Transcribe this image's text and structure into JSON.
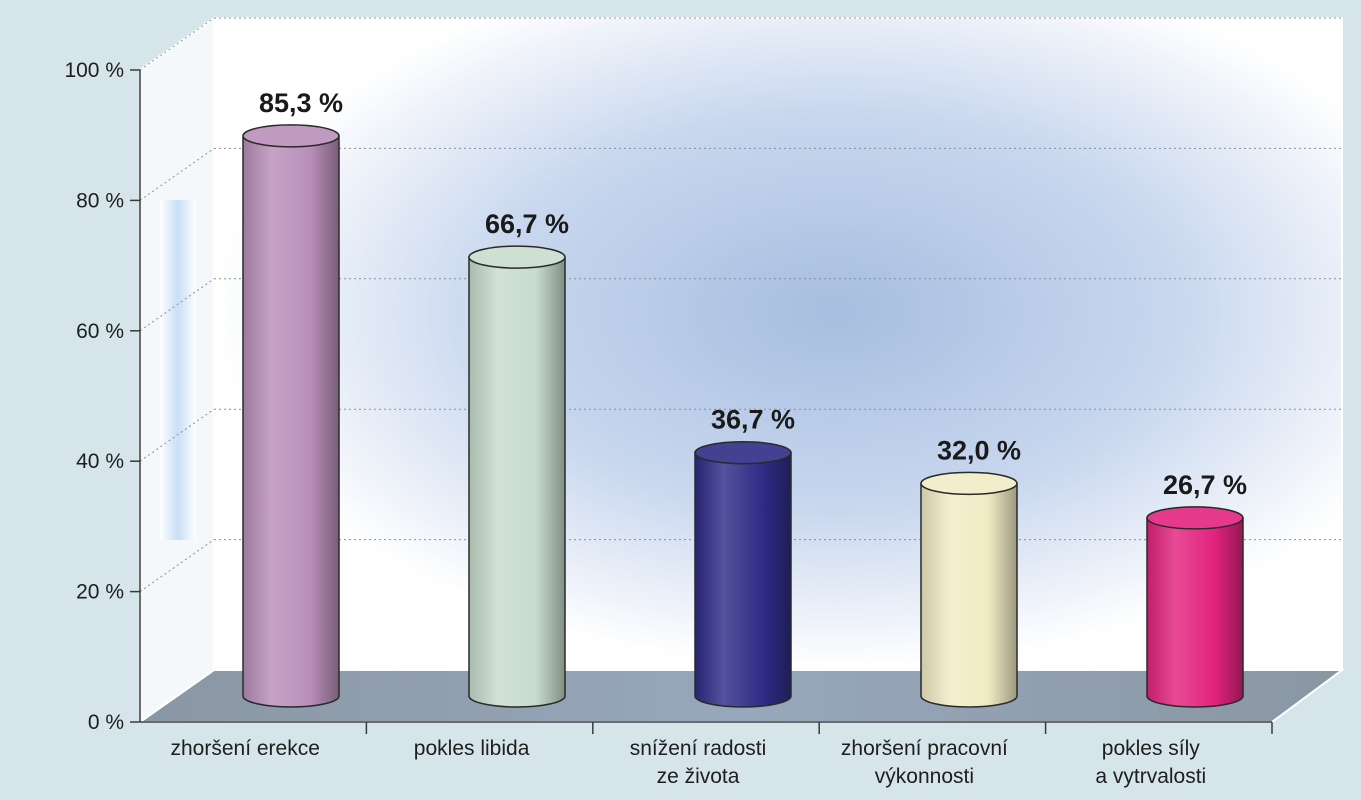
{
  "chart_data": {
    "type": "bar",
    "categories": [
      [
        "zhoršení erekce"
      ],
      [
        "pokles libida"
      ],
      [
        "snížení radosti",
        "ze života"
      ],
      [
        "zhoršení pracovní",
        "výkonnosti"
      ],
      [
        "pokles síly",
        "a vytrvalosti"
      ]
    ],
    "values": [
      85.3,
      66.7,
      36.7,
      32.0,
      26.7
    ],
    "data_labels": [
      "85,3 %",
      "66,7 %",
      "36,7 %",
      "32,0 %",
      "26,7 %"
    ],
    "bar_colors": [
      "#b98fb9",
      "#c7dccc",
      "#2e2c86",
      "#f1ebc4",
      "#e2237e"
    ],
    "yticks": [
      {
        "value": 0,
        "label": "0 %"
      },
      {
        "value": 20,
        "label": "20 %"
      },
      {
        "value": 40,
        "label": "40 %"
      },
      {
        "value": 60,
        "label": "60 %"
      },
      {
        "value": 80,
        "label": "80 %"
      },
      {
        "value": 100,
        "label": "100 %"
      }
    ],
    "ylim": [
      0,
      100
    ],
    "grid": true,
    "style": "3d-cylinder",
    "colors": {
      "background": "#d5e5ea",
      "floor": "#8d9aa6",
      "wall": "#ffffff",
      "wall_glow": "#a9bfe0"
    }
  }
}
